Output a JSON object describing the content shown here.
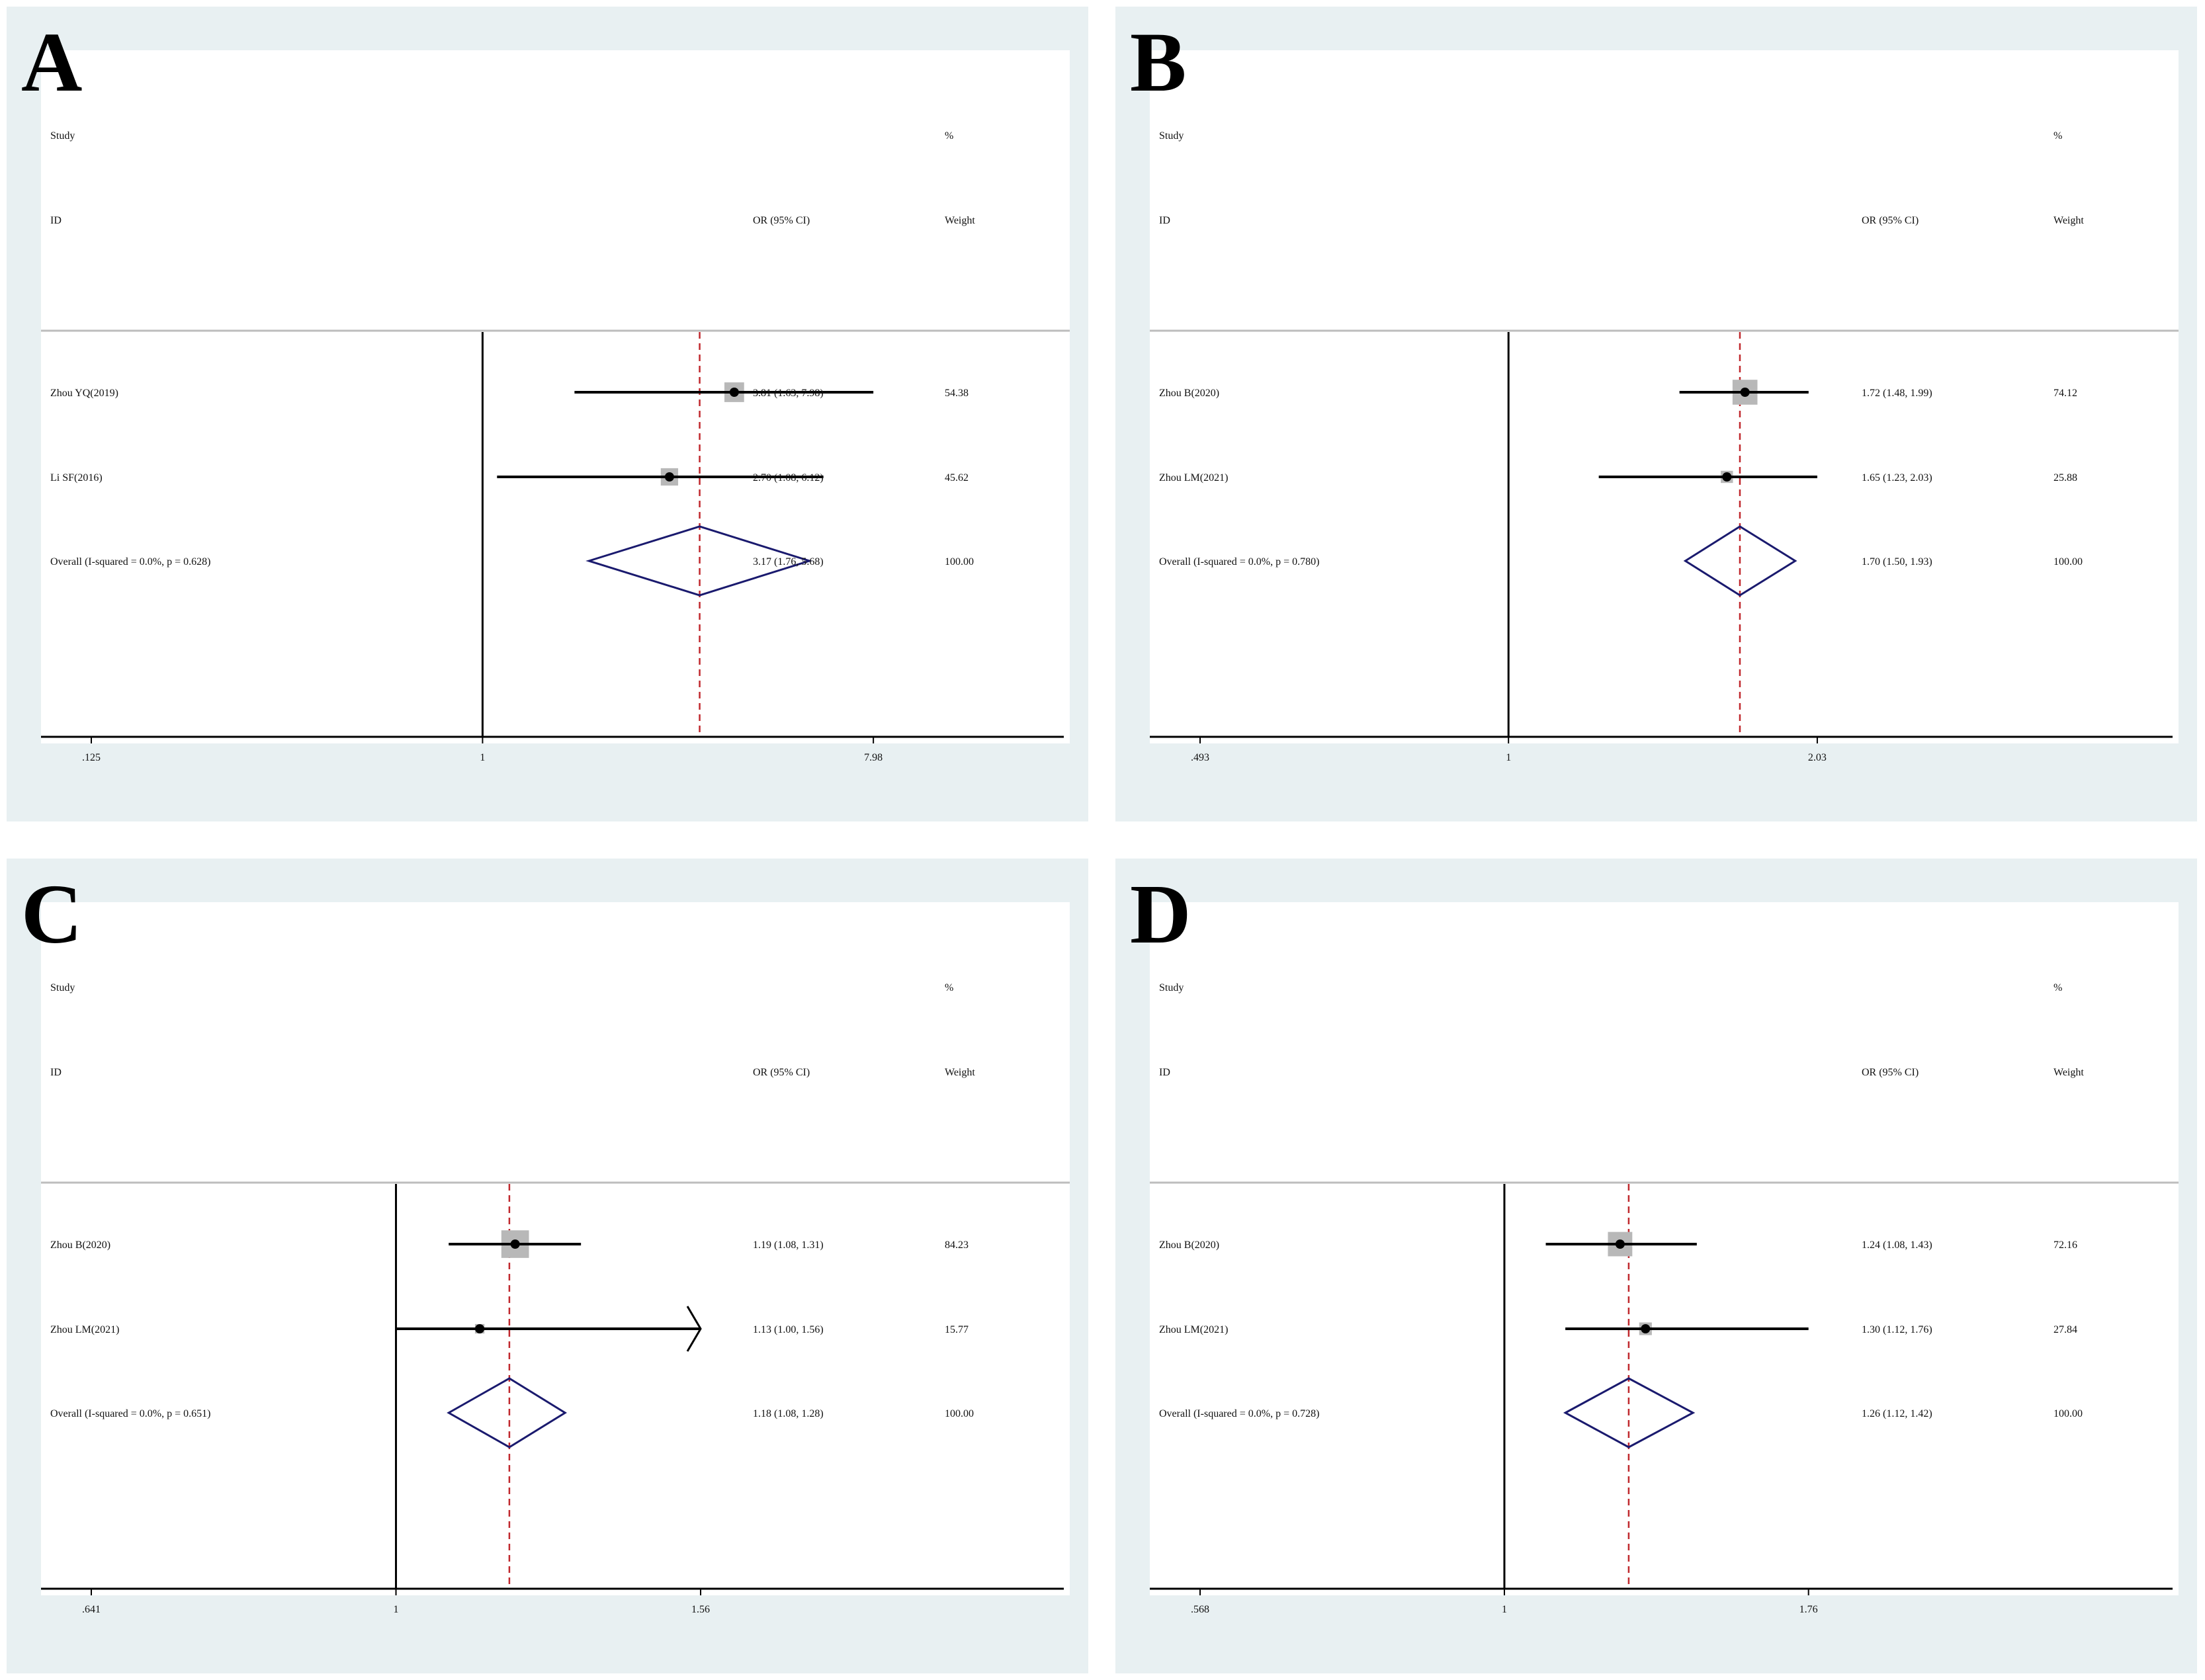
{
  "colors": {
    "panel_bg": "#e8f0f2",
    "plot_bg": "#ffffff",
    "ref_line": "#000000",
    "overall_line": "#c0282d",
    "diamond": "#1a1a6e",
    "weight_box": "#b8b8b8"
  },
  "chart_data": [
    {
      "type": "forest",
      "panel_label": "A",
      "header": {
        "study": "Study",
        "id": "ID",
        "or_ci": "OR (95% CI)",
        "pct": "%",
        "weight": "Weight"
      },
      "xscale": "log",
      "xlim": [
        0.125,
        16
      ],
      "xticks": [
        ".125",
        "1",
        "7.98"
      ],
      "xtick_values": [
        0.125,
        1,
        7.98
      ],
      "reference": 1,
      "studies": [
        {
          "label": "Zhou YQ(2019)",
          "or": 3.81,
          "lo": 1.63,
          "hi": 7.98,
          "or_ci": "3.81 (1.63, 7.98)",
          "weight": "54.38",
          "weight_pct": 54.38
        },
        {
          "label": "Li SF(2016)",
          "or": 2.7,
          "lo": 1.08,
          "hi": 6.12,
          "or_ci": "2.70 (1.08, 6.12)",
          "weight": "45.62",
          "weight_pct": 45.62
        }
      ],
      "overall": {
        "label": "Overall  (I-squared = 0.0%, p = 0.628)",
        "or": 3.17,
        "lo": 1.76,
        "hi": 5.68,
        "or_ci": "3.17 (1.76, 5.68)",
        "weight": "100.00"
      }
    },
    {
      "type": "forest",
      "panel_label": "B",
      "header": {
        "study": "Study",
        "id": "ID",
        "or_ci": "OR (95% CI)",
        "pct": "%",
        "weight": "Weight"
      },
      "xscale": "log",
      "xlim": [
        0.493,
        4.0
      ],
      "xticks": [
        ".493",
        "1",
        "2.03"
      ],
      "xtick_values": [
        0.493,
        1,
        2.03
      ],
      "reference": 1,
      "studies": [
        {
          "label": "Zhou B(2020)",
          "or": 1.72,
          "lo": 1.48,
          "hi": 1.99,
          "or_ci": "1.72 (1.48, 1.99)",
          "weight": "74.12",
          "weight_pct": 74.12
        },
        {
          "label": "Zhou LM(2021)",
          "or": 1.65,
          "lo": 1.23,
          "hi": 2.03,
          "or_ci": "1.65 (1.23, 2.03)",
          "weight": "25.88",
          "weight_pct": 25.88
        }
      ],
      "overall": {
        "label": "Overall  (I-squared = 0.0%, p = 0.780)",
        "or": 1.7,
        "lo": 1.5,
        "hi": 1.93,
        "or_ci": "1.70 (1.50, 1.93)",
        "weight": "100.00"
      }
    },
    {
      "type": "forest",
      "panel_label": "C",
      "header": {
        "study": "Study",
        "id": "ID",
        "or_ci": "OR (95% CI)",
        "pct": "%",
        "weight": "Weight"
      },
      "xscale": "log",
      "xlim": [
        0.641,
        2.43
      ],
      "xticks": [
        ".641",
        "1",
        "1.56"
      ],
      "xtick_values": [
        0.641,
        1,
        1.56
      ],
      "reference": 1,
      "studies": [
        {
          "label": "Zhou B(2020)",
          "or": 1.19,
          "lo": 1.08,
          "hi": 1.31,
          "or_ci": "1.19 (1.08, 1.31)",
          "weight": "84.23",
          "weight_pct": 84.23
        },
        {
          "label": "Zhou LM(2021)",
          "or": 1.13,
          "lo": 1.0,
          "hi": 1.56,
          "or_ci": "1.13 (1.00, 1.56)",
          "weight": "15.77",
          "weight_pct": 15.77,
          "arrow_right": true
        }
      ],
      "overall": {
        "label": "Overall  (I-squared = 0.0%, p = 0.651)",
        "or": 1.18,
        "lo": 1.08,
        "hi": 1.28,
        "or_ci": "1.18 (1.08, 1.28)",
        "weight": "100.00"
      }
    },
    {
      "type": "forest",
      "panel_label": "D",
      "header": {
        "study": "Study",
        "id": "ID",
        "or_ci": "OR (95% CI)",
        "pct": "%",
        "weight": "Weight"
      },
      "xscale": "log",
      "xlim": [
        0.568,
        3.1
      ],
      "xticks": [
        ".568",
        "1",
        "1.76"
      ],
      "xtick_values": [
        0.568,
        1,
        1.76
      ],
      "reference": 1,
      "studies": [
        {
          "label": "Zhou B(2020)",
          "or": 1.24,
          "lo": 1.08,
          "hi": 1.43,
          "or_ci": "1.24 (1.08, 1.43)",
          "weight": "72.16",
          "weight_pct": 72.16
        },
        {
          "label": "Zhou LM(2021)",
          "or": 1.3,
          "lo": 1.12,
          "hi": 1.76,
          "or_ci": "1.30 (1.12, 1.76)",
          "weight": "27.84",
          "weight_pct": 27.84
        }
      ],
      "overall": {
        "label": "Overall  (I-squared = 0.0%, p = 0.728)",
        "or": 1.26,
        "lo": 1.12,
        "hi": 1.42,
        "or_ci": "1.26 (1.12, 1.42)",
        "weight": "100.00"
      }
    }
  ]
}
